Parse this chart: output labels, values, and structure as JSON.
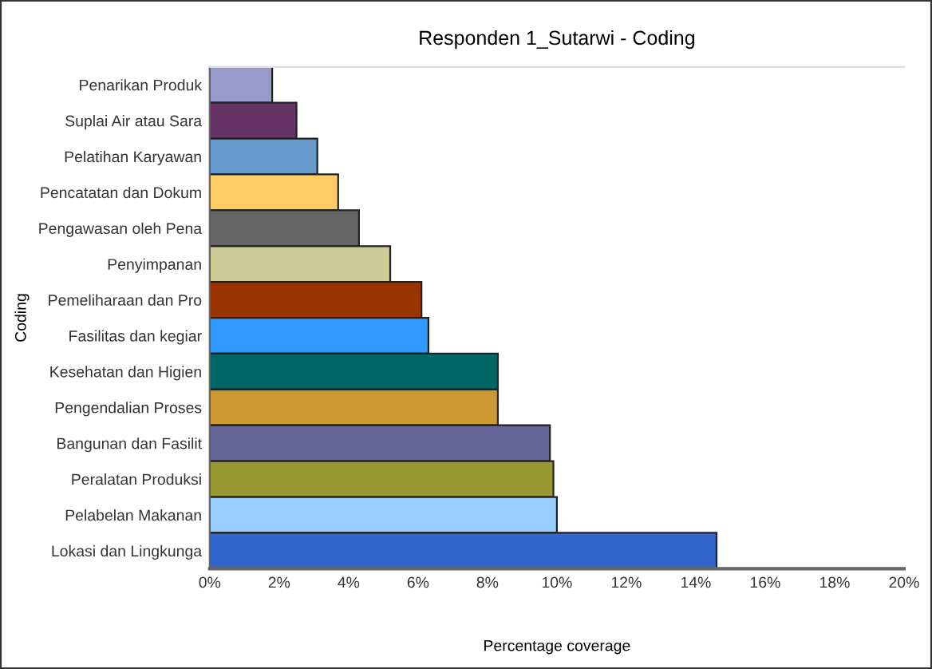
{
  "chart_data": {
    "type": "bar",
    "orientation": "horizontal",
    "title": "Responden 1_Sutarwi - Coding",
    "xlabel": "Percentage coverage",
    "ylabel": "Coding",
    "categories": [
      "Penarikan Produk",
      "Suplai Air atau Sara",
      "Pelatihan Karyawan",
      "Pencatatan dan Dokum",
      "Pengawasan oleh Pena",
      "Penyimpanan",
      "Pemeliharaan dan Pro",
      "Fasilitas dan kegiar",
      "Kesehatan dan Higien",
      "Pengendalian Proses",
      "Bangunan dan Fasilit",
      "Peralatan Produksi",
      "Pelabelan Makanan",
      "Lokasi dan Lingkunga"
    ],
    "values": [
      1.8,
      2.5,
      3.1,
      3.7,
      4.3,
      5.2,
      6.1,
      6.3,
      8.3,
      8.3,
      9.8,
      9.9,
      10.0,
      14.6
    ],
    "colors": [
      "#9999cc",
      "#663366",
      "#6699cc",
      "#ffcc66",
      "#666666",
      "#cccc99",
      "#993300",
      "#3399ff",
      "#006666",
      "#cc9933",
      "#666699",
      "#999933",
      "#99ccff",
      "#3366cc"
    ],
    "xlim": [
      0,
      20
    ],
    "xticks": [
      {
        "value": 0,
        "label": "0%"
      },
      {
        "value": 2,
        "label": "2%"
      },
      {
        "value": 4,
        "label": "4%"
      },
      {
        "value": 6,
        "label": "6%"
      },
      {
        "value": 8,
        "label": "8%"
      },
      {
        "value": 10,
        "label": "10%"
      },
      {
        "value": 12,
        "label": "12%"
      },
      {
        "value": 14,
        "label": "14%"
      },
      {
        "value": 16,
        "label": "16%"
      },
      {
        "value": 18,
        "label": "18%"
      },
      {
        "value": 20,
        "label": "20%"
      }
    ],
    "grid": false,
    "legend": false
  }
}
